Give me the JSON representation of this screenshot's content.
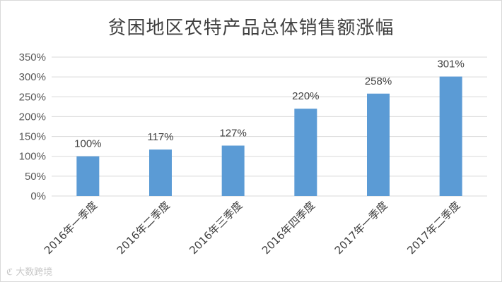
{
  "chart_data": {
    "type": "bar",
    "title": "贫困地区农特产品总体销售额涨幅",
    "categories": [
      "2016年一季度",
      "2016年二季度",
      "2016年三季度",
      "2016年四季度",
      "2017年一季度",
      "2017年二季度"
    ],
    "values": [
      100,
      117,
      127,
      220,
      258,
      301
    ],
    "data_labels": [
      "100%",
      "117%",
      "127%",
      "220%",
      "258%",
      "301%"
    ],
    "y_ticks": [
      "0%",
      "50%",
      "100%",
      "150%",
      "200%",
      "250%",
      "300%",
      "350%"
    ],
    "ylim": [
      0,
      350
    ],
    "grid": true,
    "legend": "none",
    "bar_color": "#5b9bd5",
    "grid_color": "#d9d9d9"
  },
  "watermark": "ℭ 大数跨境"
}
